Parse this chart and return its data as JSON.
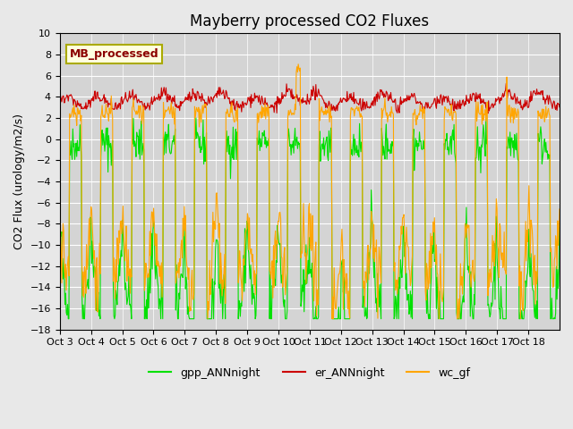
{
  "title": "Mayberry processed CO2 Fluxes",
  "ylabel": "CO2 Flux (urology/m2/s)",
  "ylim": [
    -18,
    10
  ],
  "yticks": [
    -18,
    -16,
    -14,
    -12,
    -10,
    -8,
    -6,
    -4,
    -2,
    0,
    2,
    4,
    6,
    8,
    10
  ],
  "xtick_labels": [
    "Oct 3",
    "Oct 4",
    "Oct 5",
    "Oct 6",
    "Oct 7",
    "Oct 8",
    "Oct 9",
    "Oct 10",
    "Oct 11",
    "Oct 12",
    "Oct 13",
    "Oct 14",
    "Oct 15",
    "Oct 16",
    "Oct 17",
    "Oct 18"
  ],
  "legend_label": "MB_processed",
  "series_labels": [
    "gpp_ANNnight",
    "er_ANNnight",
    "wc_gf"
  ],
  "series_colors": [
    "#00e000",
    "#cc0000",
    "#ffa500"
  ],
  "background_color": "#e8e8e8",
  "plot_bg_color": "#d4d4d4",
  "n_days": 16,
  "n_per_day": 48
}
